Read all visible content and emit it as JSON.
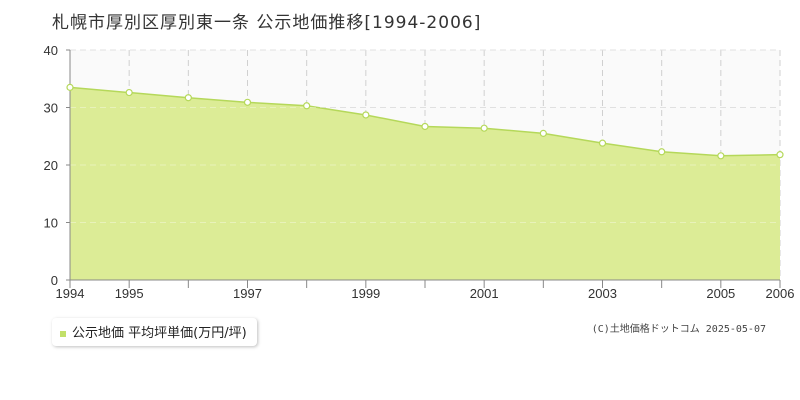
{
  "chart_data": {
    "type": "area",
    "title": "札幌市厚別区厚別東一条 公示地価推移[1994-2006]",
    "x": [
      1994,
      1995,
      1996,
      1997,
      1998,
      1999,
      2000,
      2001,
      2002,
      2003,
      2004,
      2005,
      2006
    ],
    "x_tick_labels": [
      "1994",
      "1995",
      "1997",
      "1999",
      "2001",
      "2003",
      "2005",
      "2006"
    ],
    "y_ticks": [
      0,
      10,
      20,
      30,
      40
    ],
    "xlim": [
      1994,
      2006
    ],
    "ylim": [
      0,
      40
    ],
    "grid": true,
    "series": [
      {
        "name": "公示地価 平均坪単価(万円/坪)",
        "values": [
          33.5,
          32.6,
          31.7,
          30.9,
          30.3,
          28.7,
          26.7,
          26.4,
          25.5,
          23.8,
          22.3,
          21.6,
          21.8
        ],
        "fill_color": "#dcec96",
        "line_color": "#b5d85a",
        "marker_color": "#ffffff"
      }
    ],
    "legend_position": "bottom-left"
  },
  "footer": {
    "copyright": "(C)土地価格ドットコム 2025-05-07"
  }
}
